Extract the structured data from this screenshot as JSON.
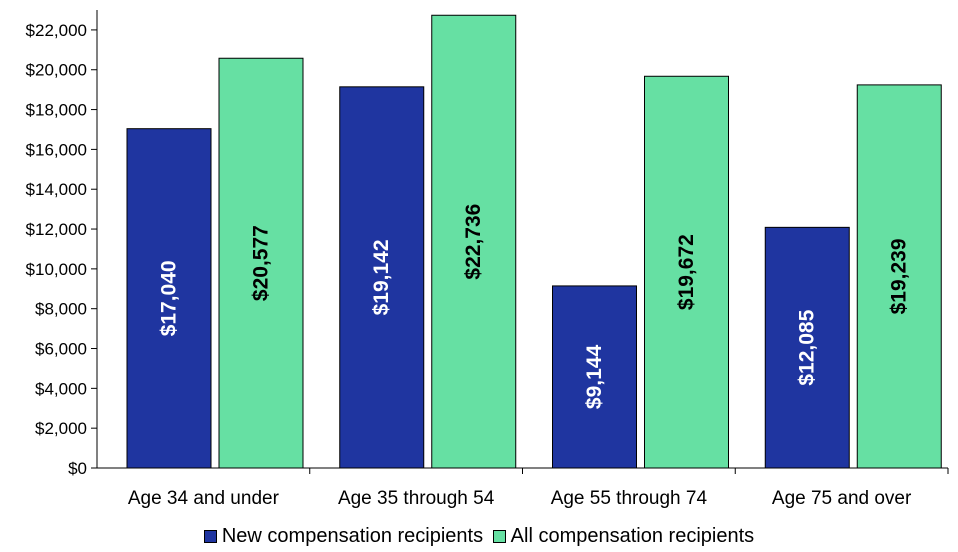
{
  "chart_data": {
    "type": "bar",
    "categories": [
      "Age 34 and under",
      "Age 35 through 54",
      "Age 55 through 74",
      "Age 75 and over"
    ],
    "series": [
      {
        "name": "New compensation recipients",
        "values": [
          17040,
          19142,
          9144,
          12085
        ],
        "labels": [
          "$17,040",
          "$19,142",
          "$9,144",
          "$12,085"
        ],
        "color": "#1f35a0",
        "label_color": "#ffffff"
      },
      {
        "name": "All compensation recipients",
        "values": [
          20577,
          22736,
          19672,
          19239
        ],
        "labels": [
          "$20,577",
          "$22,736",
          "$19,672",
          "$19,239"
        ],
        "color": "#66e0a3",
        "label_color": "#000000"
      }
    ],
    "ylim": [
      0,
      23000
    ],
    "yticks": [
      0,
      2000,
      4000,
      6000,
      8000,
      10000,
      12000,
      14000,
      16000,
      18000,
      20000,
      22000
    ],
    "ytick_labels": [
      "$0",
      "$2,000",
      "$4,000",
      "$6,000",
      "$8,000",
      "$10,000",
      "$12,000",
      "$14,000",
      "$16,000",
      "$18,000",
      "$20,000",
      "$22,000"
    ],
    "title": "",
    "xlabel": "",
    "ylabel": "",
    "grid": false,
    "legend_position": "bottom"
  }
}
